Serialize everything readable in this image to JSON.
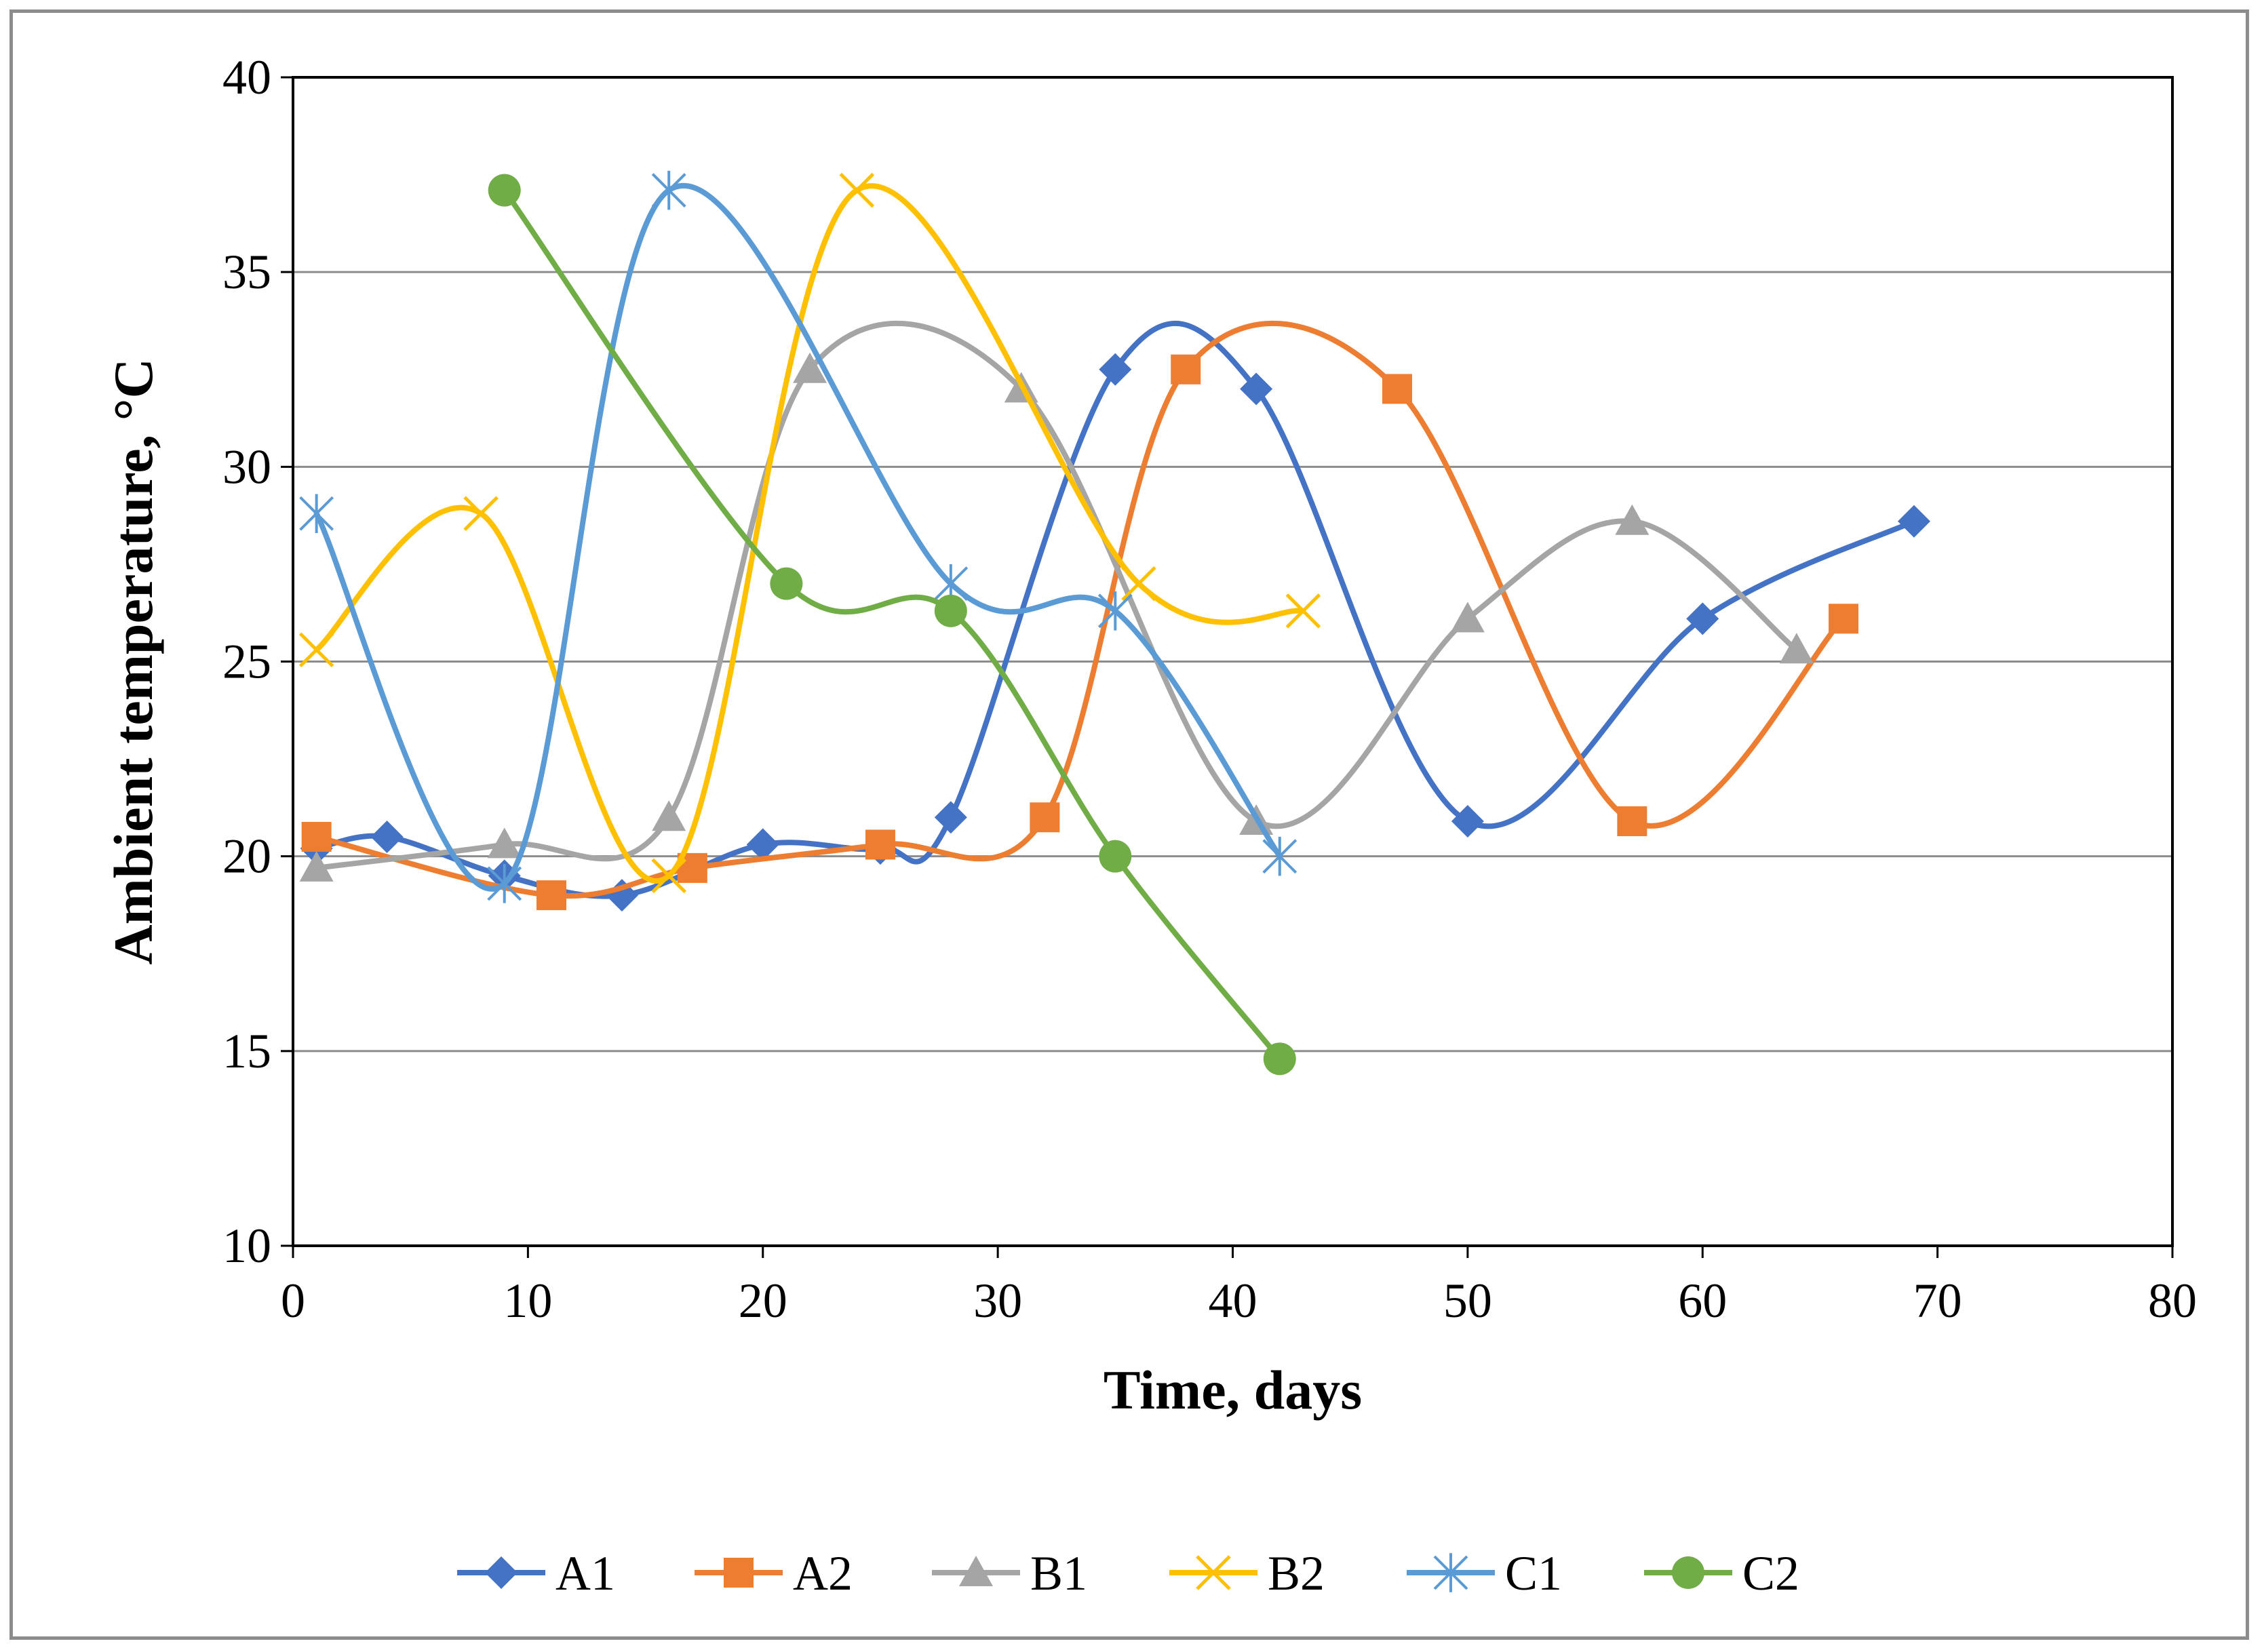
{
  "chart_data": {
    "type": "line",
    "smooth": true,
    "title": "",
    "xlabel": "Time, days",
    "ylabel": "Ambient temperature, °C",
    "xlim": [
      0,
      80
    ],
    "ylim": [
      10,
      40
    ],
    "xticks": [
      0,
      10,
      20,
      30,
      40,
      50,
      60,
      70,
      80
    ],
    "yticks": [
      10,
      15,
      20,
      25,
      30,
      35,
      40
    ],
    "grid": "horizontal",
    "legend_position": "bottom",
    "series": [
      {
        "name": "A1",
        "color": "#4472C4",
        "marker": "diamond",
        "x": [
          1,
          4,
          9,
          14,
          20,
          25,
          28,
          35,
          41,
          50,
          60,
          69
        ],
        "y": [
          20.2,
          20.5,
          19.5,
          19.0,
          20.3,
          20.2,
          21.0,
          32.5,
          32.0,
          20.9,
          26.1,
          28.6
        ]
      },
      {
        "name": "A2",
        "color": "#ED7D31",
        "marker": "square",
        "x": [
          1,
          11,
          17,
          25,
          32,
          38,
          47,
          57,
          66
        ],
        "y": [
          20.5,
          19.0,
          19.7,
          20.3,
          21.0,
          32.5,
          32.0,
          20.9,
          26.1
        ]
      },
      {
        "name": "B1",
        "color": "#A5A5A5",
        "marker": "triangle",
        "x": [
          1,
          9,
          16,
          22,
          31,
          41,
          50,
          57,
          64
        ],
        "y": [
          19.7,
          20.3,
          21.0,
          32.5,
          32.0,
          20.9,
          26.1,
          28.6,
          25.3
        ]
      },
      {
        "name": "B2",
        "color": "#FFC000",
        "marker": "x",
        "x": [
          1,
          8,
          16,
          24,
          36,
          43
        ],
        "y": [
          25.3,
          28.8,
          19.5,
          37.1,
          27.0,
          26.3
        ]
      },
      {
        "name": "C1",
        "color": "#5B9BD5",
        "marker": "star",
        "x": [
          1,
          9,
          16,
          28,
          35,
          42
        ],
        "y": [
          28.8,
          19.3,
          37.1,
          27.0,
          26.3,
          20.0
        ]
      },
      {
        "name": "C2",
        "color": "#70AD47",
        "marker": "circle",
        "x": [
          9,
          21,
          28,
          35,
          42
        ],
        "y": [
          37.1,
          27.0,
          26.3,
          20.0,
          14.8
        ]
      }
    ]
  }
}
